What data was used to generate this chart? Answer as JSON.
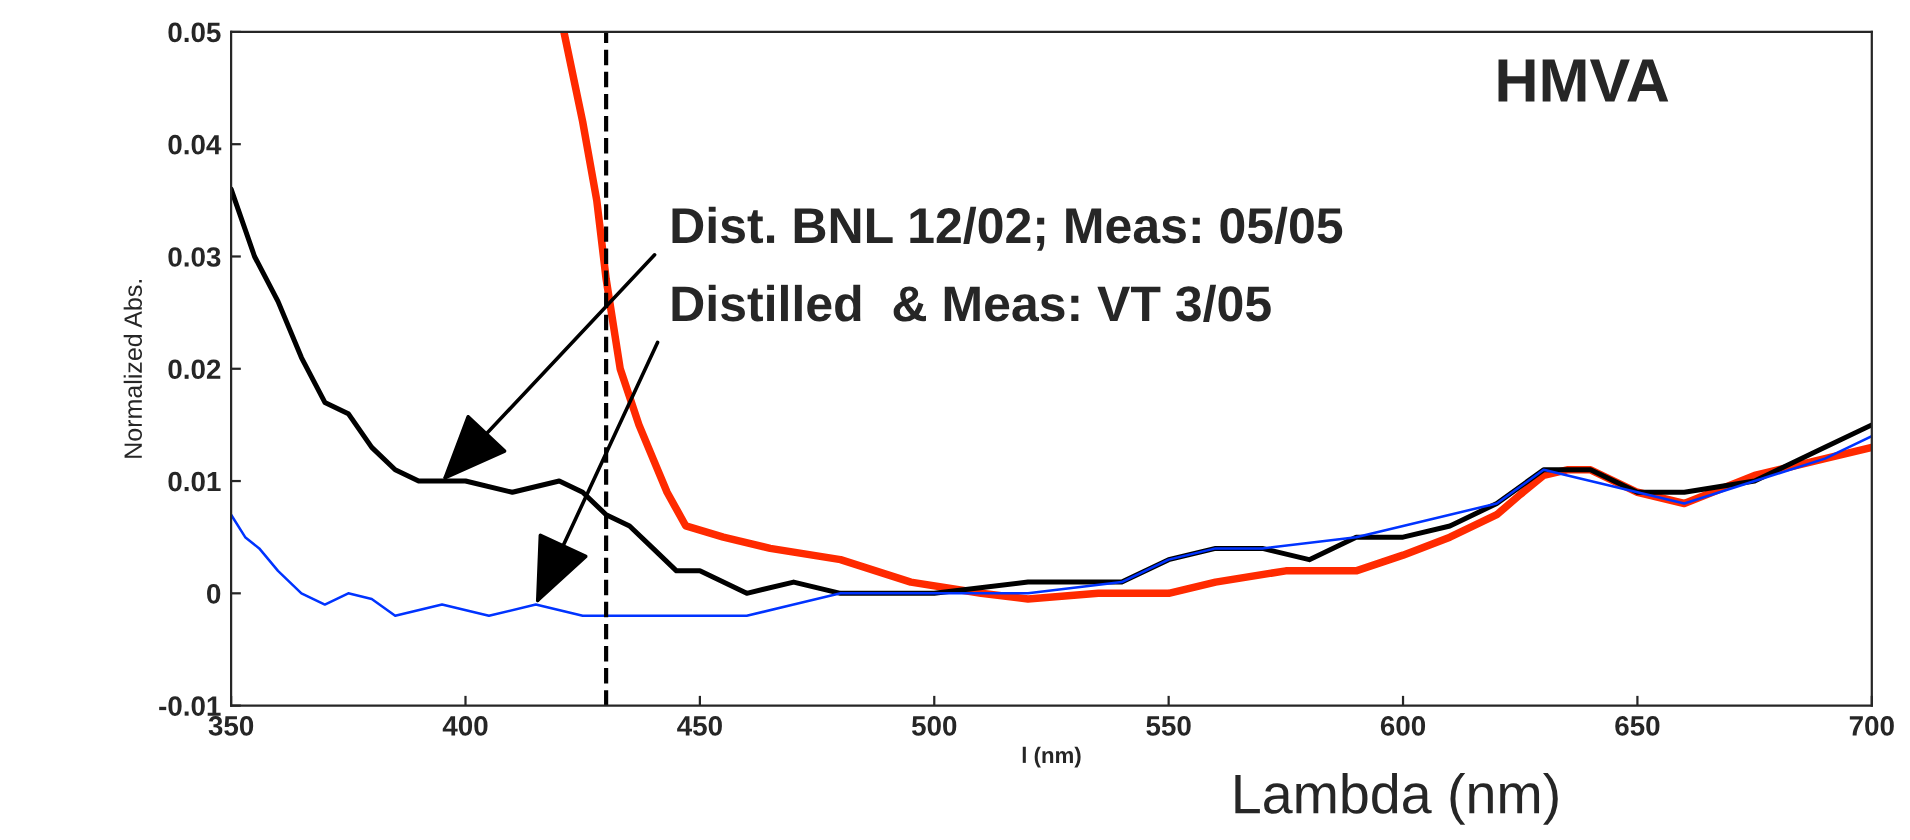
{
  "chart_data": {
    "type": "line",
    "xlabel": "l (nm)",
    "ylabel": "Normalized Abs.",
    "xlim": [
      350,
      700
    ],
    "xticks": [
      350,
      400,
      450,
      500,
      550,
      600,
      650,
      700
    ],
    "ylim": [
      -0.01,
      0.05
    ],
    "yticks": [
      -0.01,
      0,
      0.01,
      0.02,
      0.03,
      0.04,
      0.05
    ],
    "grid": false,
    "legend": false,
    "marker": "none",
    "line_style": "solid",
    "series": [
      {
        "color": "#ff2a00",
        "x": [
          421,
          425,
          428,
          430,
          433,
          437,
          440,
          443,
          447,
          455,
          465,
          480,
          495,
          510,
          520,
          535,
          550,
          560,
          575,
          590,
          600,
          610,
          620,
          625,
          630,
          635,
          640,
          650,
          660,
          675,
          690,
          700
        ],
        "values": [
          0.05,
          0.042,
          0.035,
          0.028,
          0.02,
          0.015,
          0.012,
          0.009,
          0.006,
          0.005,
          0.004,
          0.003,
          0.001,
          0.0,
          -0.0005,
          0.0,
          0.0,
          0.001,
          0.002,
          0.002,
          0.0034,
          0.005,
          0.007,
          0.0088,
          0.0105,
          0.011,
          0.011,
          0.009,
          0.008,
          0.0105,
          0.012,
          0.013
        ]
      },
      {
        "color": "#000000",
        "x": [
          350,
          355,
          360,
          365,
          370,
          375,
          380,
          385,
          390,
          400,
          410,
          420,
          425,
          430,
          435,
          440,
          445,
          450,
          460,
          470,
          480,
          500,
          520,
          540,
          550,
          560,
          570,
          580,
          590,
          600,
          610,
          620,
          630,
          640,
          650,
          660,
          675,
          690,
          700
        ],
        "values": [
          0.036,
          0.03,
          0.026,
          0.021,
          0.017,
          0.016,
          0.013,
          0.011,
          0.01,
          0.01,
          0.009,
          0.01,
          0.009,
          0.007,
          0.006,
          0.004,
          0.002,
          0.002,
          0.0,
          0.001,
          0.0,
          0.0,
          0.001,
          0.001,
          0.003,
          0.004,
          0.004,
          0.003,
          0.005,
          0.005,
          0.006,
          0.008,
          0.011,
          0.011,
          0.009,
          0.009,
          0.01,
          0.013,
          0.015
        ]
      },
      {
        "color": "#0033ff",
        "x": [
          350,
          353,
          356,
          360,
          365,
          370,
          375,
          380,
          385,
          395,
          405,
          415,
          425,
          435,
          450,
          460,
          470,
          480,
          500,
          520,
          540,
          550,
          560,
          570,
          590,
          600,
          610,
          620,
          630,
          640,
          650,
          660,
          675,
          690,
          700
        ],
        "values": [
          0.007,
          0.005,
          0.004,
          0.002,
          0.0,
          -0.001,
          0.0,
          -0.0005,
          -0.002,
          -0.001,
          -0.002,
          -0.001,
          -0.002,
          -0.002,
          -0.002,
          -0.002,
          -0.001,
          0.0,
          0.0,
          0.0,
          0.001,
          0.003,
          0.004,
          0.004,
          0.005,
          0.006,
          0.007,
          0.008,
          0.011,
          0.01,
          0.009,
          0.008,
          0.01,
          0.012,
          0.014
        ]
      }
    ],
    "ref_lines": [
      {
        "axis": "x",
        "value": 430,
        "color": "#000000",
        "line_style": "dashed"
      }
    ],
    "annotations": [
      {
        "text": "Dist. BNL 12/02; Meas: 05/05",
        "x": 395,
        "y": 0.01
      },
      {
        "text": "Distilled  & Meas: VT 3/05",
        "x": 415,
        "y": -0.001
      },
      "HMVA",
      "Lambda (nm)"
    ]
  }
}
